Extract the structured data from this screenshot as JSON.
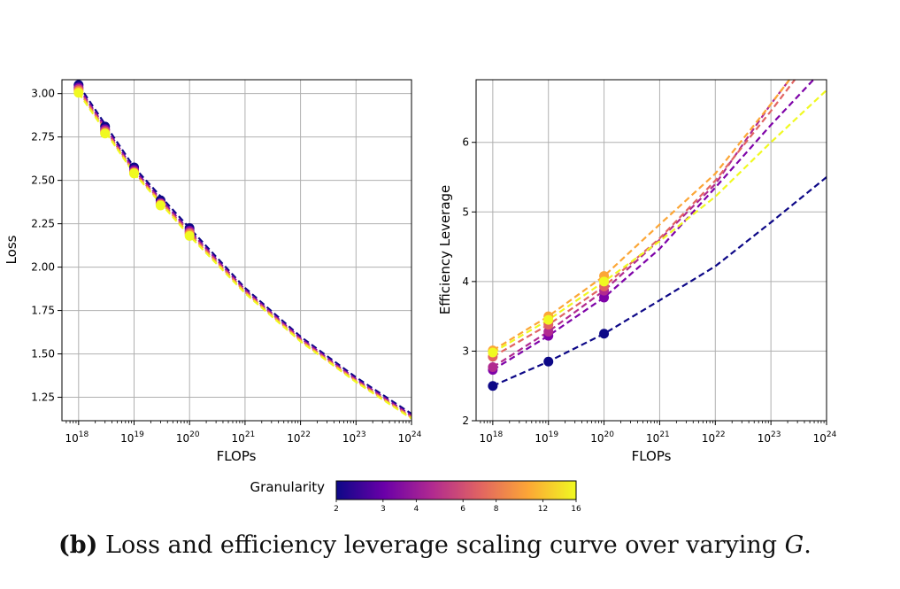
{
  "caption": {
    "label": "(b)",
    "text": "Loss and efficiency leverage scaling curve over varying",
    "variable": "G",
    "end": "."
  },
  "colorbar": {
    "label": "Granularity",
    "ticks": [
      "2",
      "3",
      "4",
      "6",
      "8",
      "12",
      "16"
    ],
    "tick_values": [
      2,
      3,
      4,
      6,
      8,
      12,
      16
    ],
    "colors": [
      "#0d0887",
      "#6a00a8",
      "#b12a90",
      "#e16462",
      "#fca636",
      "#f0f921"
    ]
  },
  "chart_data": [
    {
      "type": "line",
      "title": "",
      "xlabel": "FLOPs",
      "ylabel": "Loss",
      "xscale": "log",
      "xlim_exp": [
        17.7,
        24
      ],
      "ylim": [
        1.115,
        3.08
      ],
      "xticks_exp": [
        18,
        19,
        20,
        21,
        22,
        23,
        24
      ],
      "xtick_labels": [
        "18",
        "19",
        "20",
        "21",
        "22",
        "23",
        "24"
      ],
      "yticks": [
        1.25,
        1.5,
        1.75,
        2.0,
        2.25,
        2.5,
        2.75,
        3.0
      ],
      "ytick_labels": [
        "1.25",
        "1.50",
        "1.75",
        "2.00",
        "2.25",
        "2.50",
        "2.75",
        "3.00"
      ],
      "grid": true,
      "series": [
        {
          "name": "G=2",
          "color": "#0d0887",
          "points_exp": [
            18,
            18.477,
            19,
            19.477,
            20
          ],
          "points_y": [
            3.05,
            2.81,
            2.575,
            2.385,
            2.225
          ],
          "curve_exp": [
            18,
            19,
            20,
            21,
            22,
            23,
            24
          ],
          "curve_y": [
            3.05,
            2.575,
            2.225,
            1.88,
            1.6,
            1.365,
            1.155
          ]
        },
        {
          "name": "G=4",
          "color": "#7e03a8",
          "points_exp": [
            18,
            18.477,
            19,
            19.477,
            20
          ],
          "points_y": [
            3.035,
            2.795,
            2.56,
            2.37,
            2.21
          ],
          "curve_exp": [
            18,
            19,
            20,
            21,
            22,
            23,
            24
          ],
          "curve_y": [
            3.035,
            2.56,
            2.21,
            1.87,
            1.59,
            1.355,
            1.145
          ]
        },
        {
          "name": "G=8",
          "color": "#cc4778",
          "points_exp": [
            18,
            18.477,
            19,
            19.477,
            20
          ],
          "points_y": [
            3.025,
            2.785,
            2.55,
            2.365,
            2.2
          ],
          "curve_exp": [
            18,
            19,
            20,
            21,
            22,
            23,
            24
          ],
          "curve_y": [
            3.025,
            2.55,
            2.2,
            1.862,
            1.583,
            1.348,
            1.138
          ]
        },
        {
          "name": "G=12",
          "color": "#f89540",
          "points_exp": [
            18,
            18.477,
            19,
            19.477,
            20
          ],
          "points_y": [
            3.015,
            2.775,
            2.545,
            2.36,
            2.19
          ],
          "curve_exp": [
            18,
            19,
            20,
            21,
            22,
            23,
            24
          ],
          "curve_y": [
            3.015,
            2.545,
            2.19,
            1.856,
            1.577,
            1.343,
            1.133
          ]
        },
        {
          "name": "G=16",
          "color": "#f0f921",
          "points_exp": [
            18,
            18.477,
            19,
            19.477,
            20
          ],
          "points_y": [
            3.005,
            2.77,
            2.54,
            2.355,
            2.18
          ],
          "curve_exp": [
            18,
            19,
            20,
            21,
            22,
            23,
            24
          ],
          "curve_y": [
            3.005,
            2.54,
            2.18,
            1.85,
            1.572,
            1.338,
            1.128
          ]
        }
      ]
    },
    {
      "type": "line",
      "title": "",
      "xlabel": "FLOPs",
      "ylabel": "Efficiency Leverage",
      "xscale": "log",
      "xlim_exp": [
        17.7,
        24
      ],
      "ylim": [
        2,
        6.9
      ],
      "xticks_exp": [
        18,
        19,
        20,
        21,
        22,
        23,
        24
      ],
      "xtick_labels": [
        "18",
        "19",
        "20",
        "21",
        "22",
        "23",
        "24"
      ],
      "yticks": [
        2,
        3,
        4,
        5,
        6
      ],
      "ytick_labels": [
        "2",
        "3",
        "4",
        "5",
        "6"
      ],
      "grid": true,
      "series": [
        {
          "name": "G=2",
          "color": "#0d0887",
          "points_exp": [
            18,
            19,
            20
          ],
          "points_y": [
            2.5,
            2.85,
            3.25
          ],
          "curve_exp": [
            18,
            19,
            20,
            21,
            22,
            23,
            24
          ],
          "curve_y": [
            2.5,
            2.85,
            3.25,
            3.73,
            4.22,
            4.85,
            5.5
          ]
        },
        {
          "name": "G=4",
          "color": "#7e03a8",
          "points_exp": [
            18,
            19,
            20
          ],
          "points_y": [
            2.73,
            3.22,
            3.77
          ],
          "curve_exp": [
            18,
            19,
            20,
            21,
            22,
            23,
            24
          ],
          "curve_y": [
            2.73,
            3.22,
            3.77,
            4.47,
            5.35,
            6.25,
            7.1
          ]
        },
        {
          "name": "G=6",
          "color": "#b12a90",
          "points_exp": [
            18,
            19,
            20
          ],
          "points_y": [
            2.77,
            3.28,
            3.87
          ],
          "curve_exp": [
            18,
            19,
            20,
            21,
            22,
            23,
            24
          ],
          "curve_y": [
            2.77,
            3.28,
            3.87,
            4.6,
            5.4,
            6.55,
            7.6
          ]
        },
        {
          "name": "G=8",
          "color": "#e16462",
          "points_exp": [
            18,
            19,
            20
          ],
          "points_y": [
            2.92,
            3.38,
            3.93
          ],
          "curve_exp": [
            18,
            19,
            20,
            21,
            22,
            23,
            24
          ],
          "curve_y": [
            2.92,
            3.38,
            3.93,
            4.62,
            5.45,
            6.45,
            7.5
          ]
        },
        {
          "name": "G=12",
          "color": "#fca636",
          "points_exp": [
            18,
            19,
            20
          ],
          "points_y": [
            3.01,
            3.5,
            4.08
          ],
          "curve_exp": [
            18,
            19,
            20,
            21,
            22,
            23,
            24
          ],
          "curve_y": [
            3.01,
            3.5,
            4.08,
            4.82,
            5.55,
            6.55,
            7.6
          ]
        },
        {
          "name": "G=16",
          "color": "#f0f921",
          "points_exp": [
            18,
            19,
            20
          ],
          "points_y": [
            2.98,
            3.45,
            4.0
          ],
          "curve_exp": [
            18,
            19,
            20,
            21,
            22,
            23,
            24
          ],
          "curve_y": [
            2.98,
            3.45,
            4.0,
            4.58,
            5.22,
            6.0,
            6.75
          ]
        }
      ]
    }
  ]
}
